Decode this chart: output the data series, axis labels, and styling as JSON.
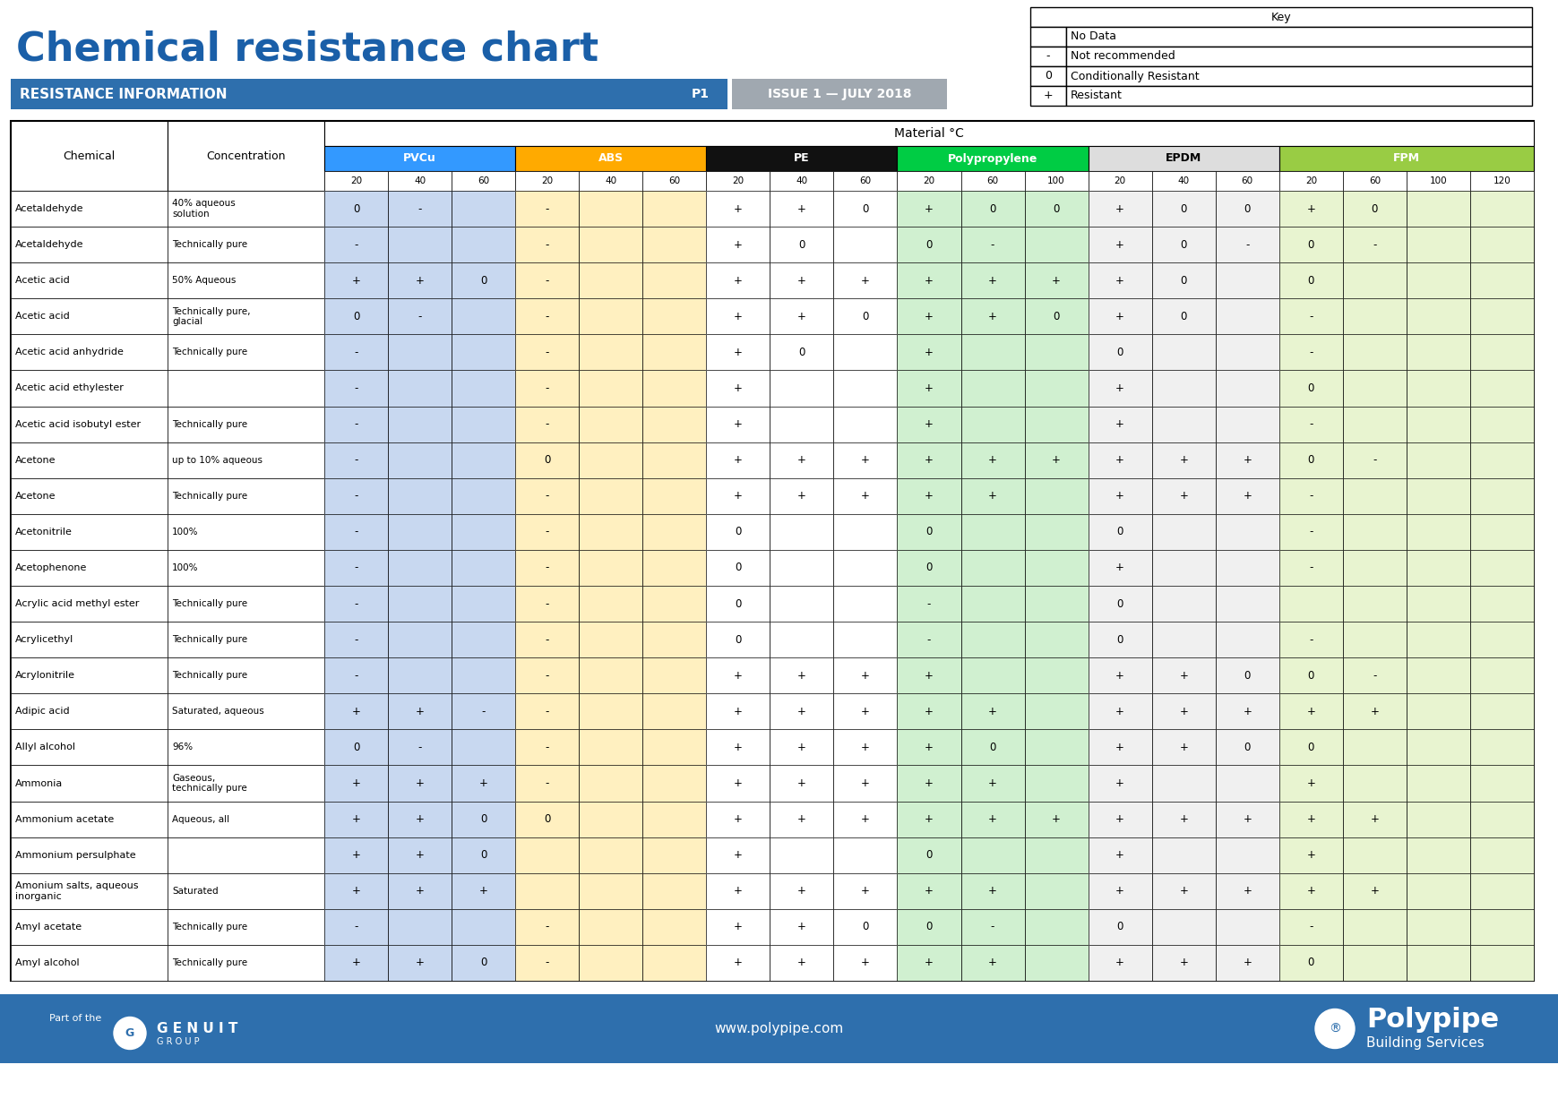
{
  "title": "Chemical resistance chart",
  "banner_text": "RESISTANCE INFORMATION",
  "banner_p": "P1",
  "banner_issue": "ISSUE 1 — JULY 2018",
  "title_color": "#1a5fa8",
  "banner_bg": "#2e6fad",
  "banner_text_color": "#ffffff",
  "issue_bg": "#a0a8b0",
  "table_header_material": "Material °C",
  "materials": [
    "PVCu",
    "ABS",
    "PE",
    "Polypropylene",
    "EPDM",
    "FPM"
  ],
  "material_colors": [
    "#3399ff",
    "#ffaa00",
    "#111111",
    "#00cc44",
    "#dddddd",
    "#99cc44"
  ],
  "material_text_colors": [
    "#ffffff",
    "#ffffff",
    "#ffffff",
    "#ffffff",
    "#000000",
    "#ffffff"
  ],
  "temp_cols": {
    "PVCu": [
      "20",
      "40",
      "60"
    ],
    "ABS": [
      "20",
      "40",
      "60"
    ],
    "PE": [
      "20",
      "40",
      "60"
    ],
    "Polypropylene": [
      "20",
      "60",
      "100"
    ],
    "EPDM": [
      "20",
      "40",
      "60"
    ],
    "FPM": [
      "20",
      "60",
      "100",
      "120"
    ]
  },
  "cell_bg_colors": {
    "PVCu": "#c8d8f0",
    "ABS": "#fff0c0",
    "PE": "#ffffff",
    "Polypropylene": "#d0f0d0",
    "EPDM": "#f0f0f0",
    "FPM": "#e8f4d0"
  },
  "key_data": [
    [
      "",
      "No Data"
    ],
    [
      "-",
      "Not recommended"
    ],
    [
      "0",
      "Conditionally Resistant"
    ],
    [
      "+",
      "Resistant"
    ]
  ],
  "chemicals": [
    "Acetaldehyde",
    "Acetaldehyde",
    "Acetic acid",
    "Acetic acid",
    "Acetic acid anhydride",
    "Acetic acid ethylester",
    "Acetic acid isobutyl ester",
    "Acetone",
    "Acetone",
    "Acetonitrile",
    "Acetophenone",
    "Acrylic acid methyl ester",
    "Acrylicethyl",
    "Acrylonitrile",
    "Adipic acid",
    "Allyl alcohol",
    "Ammonia",
    "Ammonium acetate",
    "Ammonium persulphate",
    "Amonium salts, aqueous\ninorganic",
    "Amyl acetate",
    "Amyl alcohol"
  ],
  "concentrations": [
    "40% aqueous\nsolution",
    "Technically pure",
    "50% Aqueous",
    "Technically pure,\nglacial",
    "Technically pure",
    "",
    "Technically pure",
    "up to 10% aqueous",
    "Technically pure",
    "100%",
    "100%",
    "Technically pure",
    "Technically pure",
    "Technically pure",
    "Saturated, aqueous",
    "96%",
    "Gaseous,\ntechnically pure",
    "Aqueous, all",
    "",
    "Saturated",
    "Technically pure",
    "Technically pure"
  ],
  "table_data": [
    [
      "0",
      "-",
      "",
      "-",
      "",
      "",
      "+",
      "+",
      "0",
      "+",
      "0",
      "0",
      "+",
      "0",
      "0",
      "+",
      "0",
      "",
      ""
    ],
    [
      "-",
      "",
      "",
      "-",
      "",
      "",
      "+",
      "0",
      "",
      "0",
      "-",
      "",
      "+",
      "0",
      "-",
      "0",
      "-",
      "",
      ""
    ],
    [
      "+",
      "+",
      "0",
      "-",
      "",
      "",
      "+",
      "+",
      "+",
      "+",
      "+",
      "+",
      "+",
      "0",
      "",
      "0",
      "",
      "",
      ""
    ],
    [
      "0",
      "-",
      "",
      "-",
      "",
      "",
      "+",
      "+",
      "0",
      "+",
      "+",
      "0",
      "+",
      "0",
      "",
      "-",
      "",
      "",
      ""
    ],
    [
      "-",
      "",
      "",
      "-",
      "",
      "",
      "+",
      "0",
      "",
      "+",
      "",
      "",
      "0",
      "",
      "",
      "-",
      "",
      "",
      ""
    ],
    [
      "-",
      "",
      "",
      "-",
      "",
      "",
      "+",
      "",
      "",
      "+",
      "",
      "",
      "+",
      "",
      "",
      "0",
      "",
      "",
      ""
    ],
    [
      "-",
      "",
      "",
      "-",
      "",
      "",
      "+",
      "",
      "",
      "+",
      "",
      "",
      "+",
      "",
      "",
      "-",
      "",
      "",
      ""
    ],
    [
      "-",
      "",
      "",
      "0",
      "",
      "",
      "+",
      "+",
      "+",
      "+",
      "+",
      "+",
      "+",
      "+",
      "+",
      "0",
      "-",
      "",
      ""
    ],
    [
      "-",
      "",
      "",
      "-",
      "",
      "",
      "+",
      "+",
      "+",
      "+",
      "+",
      "",
      "+",
      "+",
      "+",
      "-",
      "",
      "",
      ""
    ],
    [
      "-",
      "",
      "",
      "-",
      "",
      "",
      "0",
      "",
      "",
      "0",
      "",
      "",
      "0",
      "",
      "",
      "-",
      "",
      "",
      ""
    ],
    [
      "-",
      "",
      "",
      "-",
      "",
      "",
      "0",
      "",
      "",
      "0",
      "",
      "",
      "+",
      "",
      "",
      "-",
      "",
      "",
      ""
    ],
    [
      "-",
      "",
      "",
      "-",
      "",
      "",
      "0",
      "",
      "",
      "-",
      "",
      "",
      "0",
      "",
      "",
      "",
      "",
      "",
      ""
    ],
    [
      "-",
      "",
      "",
      "-",
      "",
      "",
      "0",
      "",
      "",
      "-",
      "",
      "",
      "0",
      "",
      "",
      "-",
      "",
      "",
      ""
    ],
    [
      "-",
      "",
      "",
      "-",
      "",
      "",
      "+",
      "+",
      "+",
      "+",
      "",
      "",
      "+",
      "+",
      "0",
      "0",
      "-",
      "",
      ""
    ],
    [
      "+",
      "+",
      "-",
      "-",
      "",
      "",
      "+",
      "+",
      "+",
      "+",
      "+",
      "",
      "+",
      "+",
      "+",
      "+",
      "+",
      "",
      ""
    ],
    [
      "0",
      "-",
      "",
      "-",
      "",
      "",
      "+",
      "+",
      "+",
      "+",
      "0",
      "",
      "+",
      "+",
      "0",
      "0",
      "",
      "",
      ""
    ],
    [
      "+",
      "+",
      "+",
      "-",
      "",
      "",
      "+",
      "+",
      "+",
      "+",
      "+",
      "",
      "+",
      "",
      "",
      "+",
      "",
      "",
      ""
    ],
    [
      "+",
      "+",
      "0",
      "0",
      "",
      "",
      "+",
      "+",
      "+",
      "+",
      "+",
      "+",
      "+",
      "+",
      "+",
      "+",
      "+",
      "",
      ""
    ],
    [
      "+",
      "+",
      "0",
      "",
      "",
      "",
      "+",
      "",
      "",
      "0",
      "",
      "",
      "+",
      "",
      "",
      "+",
      "",
      "",
      ""
    ],
    [
      "+",
      "+",
      "+",
      "",
      "",
      "",
      "+",
      "+",
      "+",
      "+",
      "+",
      "",
      "+",
      "+",
      "+",
      "+",
      "+",
      "",
      ""
    ],
    [
      "-",
      "",
      "",
      "-",
      "",
      "",
      "+",
      "+",
      "0",
      "0",
      "-",
      "",
      "0",
      "",
      "",
      "-",
      "",
      "",
      ""
    ],
    [
      "+",
      "+",
      "0",
      "-",
      "",
      "",
      "+",
      "+",
      "+",
      "+",
      "+",
      "",
      "+",
      "+",
      "+",
      "0",
      "",
      "",
      ""
    ]
  ],
  "footer_bg": "#2e6fad",
  "footer_url": "www.polypipe.com",
  "footer_part_of": "Part of the",
  "footer_genuit": "G E N U I T",
  "footer_group": "G R O U P",
  "footer_polypipe": "Polypipe",
  "footer_building": "Building Services"
}
